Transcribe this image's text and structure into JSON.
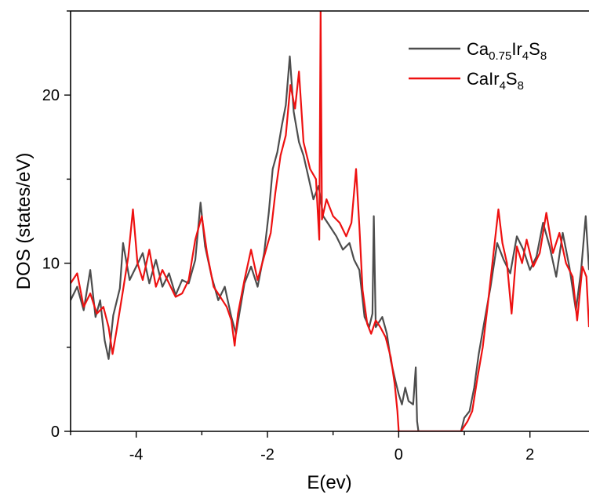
{
  "chart_data": {
    "type": "line",
    "xlabel": "E(ev)",
    "ylabel": "DOS (states/eV)",
    "xlim": [
      -5.0,
      2.9
    ],
    "ylim": [
      0,
      25
    ],
    "xticks": [
      -4,
      -2,
      0,
      2
    ],
    "yticks": [
      0,
      10,
      20
    ],
    "xtick_labels": [
      "-4",
      "-2",
      "0",
      "2"
    ],
    "ytick_labels": [
      "0",
      "10",
      "20"
    ],
    "grid": false,
    "legend_position": "top-right",
    "series": [
      {
        "name": "Ca0.75Ir4S8",
        "legend": {
          "base": "Ca",
          "sub1": "0.75",
          "mid": "Ir",
          "sub2": "4",
          "mid2": "S",
          "sub3": "8"
        },
        "color": "#4d4d4d",
        "points": [
          [
            -5.0,
            7.8
          ],
          [
            -4.9,
            8.6
          ],
          [
            -4.8,
            7.2
          ],
          [
            -4.7,
            9.6
          ],
          [
            -4.62,
            6.8
          ],
          [
            -4.55,
            7.8
          ],
          [
            -4.48,
            5.4
          ],
          [
            -4.42,
            4.3
          ],
          [
            -4.35,
            6.9
          ],
          [
            -4.25,
            8.5
          ],
          [
            -4.2,
            11.2
          ],
          [
            -4.1,
            9.0
          ],
          [
            -4.0,
            9.8
          ],
          [
            -3.9,
            10.6
          ],
          [
            -3.8,
            8.8
          ],
          [
            -3.7,
            10.2
          ],
          [
            -3.6,
            8.6
          ],
          [
            -3.5,
            9.4
          ],
          [
            -3.4,
            8.1
          ],
          [
            -3.3,
            9.0
          ],
          [
            -3.2,
            8.8
          ],
          [
            -3.1,
            10.2
          ],
          [
            -3.02,
            13.6
          ],
          [
            -2.95,
            11.0
          ],
          [
            -2.85,
            9.2
          ],
          [
            -2.75,
            7.8
          ],
          [
            -2.65,
            8.6
          ],
          [
            -2.55,
            6.8
          ],
          [
            -2.48,
            5.8
          ],
          [
            -2.42,
            7.2
          ],
          [
            -2.35,
            8.8
          ],
          [
            -2.25,
            9.8
          ],
          [
            -2.15,
            8.6
          ],
          [
            -2.05,
            10.6
          ],
          [
            -1.98,
            13.0
          ],
          [
            -1.92,
            15.6
          ],
          [
            -1.85,
            16.6
          ],
          [
            -1.78,
            18.2
          ],
          [
            -1.72,
            19.4
          ],
          [
            -1.66,
            22.3
          ],
          [
            -1.6,
            19.0
          ],
          [
            -1.52,
            17.2
          ],
          [
            -1.45,
            16.4
          ],
          [
            -1.38,
            15.2
          ],
          [
            -1.3,
            13.8
          ],
          [
            -1.22,
            14.6
          ],
          [
            -1.15,
            12.8
          ],
          [
            -1.05,
            12.2
          ],
          [
            -0.95,
            11.6
          ],
          [
            -0.85,
            10.8
          ],
          [
            -0.75,
            11.2
          ],
          [
            -0.68,
            10.2
          ],
          [
            -0.6,
            9.6
          ],
          [
            -0.52,
            6.8
          ],
          [
            -0.45,
            6.2
          ],
          [
            -0.4,
            7.0
          ],
          [
            -0.38,
            12.8
          ],
          [
            -0.35,
            6.2
          ],
          [
            -0.25,
            6.8
          ],
          [
            -0.18,
            5.8
          ],
          [
            -0.12,
            4.2
          ],
          [
            -0.05,
            3.0
          ],
          [
            0.0,
            2.2
          ],
          [
            0.05,
            1.6
          ],
          [
            0.1,
            2.6
          ],
          [
            0.15,
            1.8
          ],
          [
            0.22,
            1.6
          ],
          [
            0.26,
            3.8
          ],
          [
            0.28,
            0.6
          ],
          [
            0.3,
            0.0
          ],
          [
            0.95,
            0.0
          ],
          [
            1.0,
            0.8
          ],
          [
            1.08,
            1.2
          ],
          [
            1.15,
            2.6
          ],
          [
            1.22,
            4.6
          ],
          [
            1.3,
            6.4
          ],
          [
            1.4,
            8.6
          ],
          [
            1.5,
            11.2
          ],
          [
            1.6,
            10.2
          ],
          [
            1.7,
            9.4
          ],
          [
            1.8,
            11.6
          ],
          [
            1.9,
            10.8
          ],
          [
            2.0,
            9.6
          ],
          [
            2.1,
            10.4
          ],
          [
            2.2,
            12.4
          ],
          [
            2.3,
            11.0
          ],
          [
            2.4,
            9.2
          ],
          [
            2.5,
            11.8
          ],
          [
            2.6,
            9.8
          ],
          [
            2.7,
            7.2
          ],
          [
            2.78,
            9.6
          ],
          [
            2.85,
            12.8
          ],
          [
            2.9,
            9.6
          ]
        ]
      },
      {
        "name": "CaIr4S8",
        "legend": {
          "base": "CaIr",
          "sub1": "4",
          "mid": "S",
          "sub2": "8",
          "mid2": "",
          "sub3": ""
        },
        "color": "#ee1111",
        "points": [
          [
            -5.0,
            8.8
          ],
          [
            -4.9,
            9.4
          ],
          [
            -4.8,
            7.4
          ],
          [
            -4.7,
            8.2
          ],
          [
            -4.6,
            7.0
          ],
          [
            -4.5,
            7.4
          ],
          [
            -4.42,
            6.2
          ],
          [
            -4.36,
            4.6
          ],
          [
            -4.3,
            6.0
          ],
          [
            -4.2,
            8.4
          ],
          [
            -4.12,
            10.4
          ],
          [
            -4.05,
            13.2
          ],
          [
            -3.98,
            10.0
          ],
          [
            -3.9,
            9.0
          ],
          [
            -3.8,
            10.8
          ],
          [
            -3.7,
            8.6
          ],
          [
            -3.6,
            9.6
          ],
          [
            -3.5,
            8.8
          ],
          [
            -3.4,
            8.0
          ],
          [
            -3.3,
            8.2
          ],
          [
            -3.2,
            9.0
          ],
          [
            -3.1,
            11.4
          ],
          [
            -3.0,
            12.8
          ],
          [
            -2.92,
            10.6
          ],
          [
            -2.82,
            8.6
          ],
          [
            -2.72,
            8.0
          ],
          [
            -2.62,
            7.4
          ],
          [
            -2.55,
            6.6
          ],
          [
            -2.5,
            5.1
          ],
          [
            -2.45,
            7.0
          ],
          [
            -2.35,
            9.0
          ],
          [
            -2.25,
            10.8
          ],
          [
            -2.15,
            9.0
          ],
          [
            -2.05,
            10.4
          ],
          [
            -1.95,
            11.8
          ],
          [
            -1.88,
            14.2
          ],
          [
            -1.8,
            16.4
          ],
          [
            -1.72,
            17.6
          ],
          [
            -1.65,
            20.6
          ],
          [
            -1.58,
            19.2
          ],
          [
            -1.52,
            21.4
          ],
          [
            -1.45,
            17.2
          ],
          [
            -1.35,
            15.6
          ],
          [
            -1.26,
            15.0
          ],
          [
            -1.21,
            11.4
          ],
          [
            -1.19,
            25.0
          ],
          [
            -1.17,
            12.6
          ],
          [
            -1.1,
            13.8
          ],
          [
            -1.0,
            12.8
          ],
          [
            -0.9,
            12.4
          ],
          [
            -0.8,
            11.6
          ],
          [
            -0.72,
            12.4
          ],
          [
            -0.65,
            15.6
          ],
          [
            -0.6,
            12.2
          ],
          [
            -0.55,
            8.4
          ],
          [
            -0.48,
            6.4
          ],
          [
            -0.42,
            5.8
          ],
          [
            -0.35,
            6.6
          ],
          [
            -0.28,
            6.2
          ],
          [
            -0.2,
            5.6
          ],
          [
            -0.12,
            4.4
          ],
          [
            -0.06,
            2.8
          ],
          [
            -0.02,
            1.2
          ],
          [
            0.0,
            0.0
          ],
          [
            0.95,
            0.0
          ],
          [
            1.05,
            0.6
          ],
          [
            1.12,
            1.2
          ],
          [
            1.2,
            3.2
          ],
          [
            1.28,
            5.0
          ],
          [
            1.36,
            7.6
          ],
          [
            1.44,
            10.4
          ],
          [
            1.52,
            13.2
          ],
          [
            1.58,
            11.2
          ],
          [
            1.65,
            10.0
          ],
          [
            1.72,
            7.0
          ],
          [
            1.8,
            11.0
          ],
          [
            1.88,
            10.0
          ],
          [
            1.95,
            11.4
          ],
          [
            2.05,
            9.8
          ],
          [
            2.15,
            10.6
          ],
          [
            2.25,
            13.0
          ],
          [
            2.35,
            10.6
          ],
          [
            2.45,
            11.8
          ],
          [
            2.55,
            10.0
          ],
          [
            2.65,
            9.2
          ],
          [
            2.72,
            6.6
          ],
          [
            2.8,
            9.8
          ],
          [
            2.86,
            9.2
          ],
          [
            2.9,
            6.2
          ]
        ]
      }
    ]
  }
}
